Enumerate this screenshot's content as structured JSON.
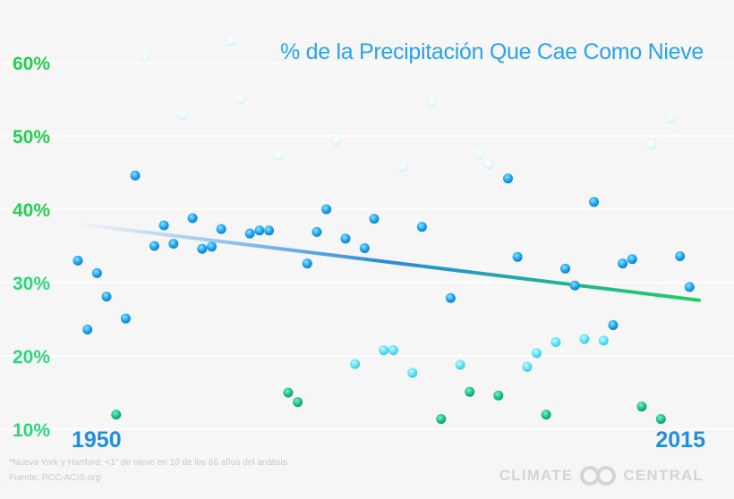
{
  "chart_data": {
    "type": "scatter",
    "title": "% de la Precipitación Que Cae Como Nieve",
    "x_start_label": "1950",
    "x_end_label": "2015",
    "xlim": [
      1950,
      2015
    ],
    "ylim": [
      10,
      60
    ],
    "y_ticks": [
      10,
      20,
      30,
      40,
      50,
      60
    ],
    "y_tick_labels": [
      "10%",
      "20%",
      "30%",
      "40%",
      "50%",
      "60%"
    ],
    "trend": {
      "start": [
        1950,
        38.0
      ],
      "end": [
        2015,
        27.6
      ]
    },
    "points": [
      [
        1950,
        33.0
      ],
      [
        1951,
        23.6
      ],
      [
        1952,
        31.3
      ],
      [
        1953,
        28.1
      ],
      [
        1954,
        12.0
      ],
      [
        1955,
        25.1
      ],
      [
        1956,
        44.6
      ],
      [
        1957,
        60.7
      ],
      [
        1958,
        35.0
      ],
      [
        1959,
        37.8
      ],
      [
        1960,
        35.3
      ],
      [
        1961,
        52.8
      ],
      [
        1962,
        38.8
      ],
      [
        1963,
        34.6
      ],
      [
        1964,
        34.9
      ],
      [
        1965,
        37.3
      ],
      [
        1966,
        62.9
      ],
      [
        1967,
        55.0
      ],
      [
        1968,
        36.7
      ],
      [
        1969,
        37.1
      ],
      [
        1970,
        37.1
      ],
      [
        1971,
        47.3
      ],
      [
        1972,
        15.0
      ],
      [
        1973,
        13.7
      ],
      [
        1974,
        32.6
      ],
      [
        1975,
        36.9
      ],
      [
        1976,
        40.0
      ],
      [
        1977,
        49.4
      ],
      [
        1978,
        36.0
      ],
      [
        1979,
        18.9
      ],
      [
        1980,
        34.7
      ],
      [
        1981,
        38.7
      ],
      [
        1982,
        20.8
      ],
      [
        1983,
        20.8
      ],
      [
        1984,
        45.8
      ],
      [
        1985,
        17.7
      ],
      [
        1986,
        37.6
      ],
      [
        1987,
        54.6
      ],
      [
        1988,
        11.4
      ],
      [
        1989,
        27.9
      ],
      [
        1990,
        18.8
      ],
      [
        1991,
        15.1
      ],
      [
        1992,
        47.5
      ],
      [
        1993,
        46.1
      ],
      [
        1994,
        14.6
      ],
      [
        1995,
        44.2
      ],
      [
        1996,
        33.5
      ],
      [
        1997,
        18.5
      ],
      [
        1998,
        20.4
      ],
      [
        1999,
        12.0
      ],
      [
        2000,
        21.9
      ],
      [
        2001,
        31.9
      ],
      [
        2002,
        29.6
      ],
      [
        2003,
        22.3
      ],
      [
        2004,
        41.0
      ],
      [
        2005,
        22.1
      ],
      [
        2006,
        24.2
      ],
      [
        2007,
        32.6
      ],
      [
        2008,
        33.2
      ],
      [
        2009,
        13.1
      ],
      [
        2010,
        48.8
      ],
      [
        2011,
        11.4
      ],
      [
        2012,
        52.4
      ],
      [
        2013,
        33.6
      ],
      [
        2014,
        29.4
      ]
    ],
    "grid": true,
    "colors": {
      "blue": "#1c9ce6",
      "green": "#1fc483",
      "cyan": "#5ae2f5",
      "pale": "#dff6fb",
      "tick_green": "#22cf52",
      "tick_blue": "#1f8fe0"
    }
  },
  "notes": {
    "line1": "*Nueva York y Hartford: <1\" de nieve en 10 de los 66 años del análisis",
    "line2": "Fuente: RCC-ACIS.org"
  },
  "logo": {
    "left": "CLIMATE",
    "right": "CENTRAL",
    "icon": "climate-central-logo-icon"
  }
}
